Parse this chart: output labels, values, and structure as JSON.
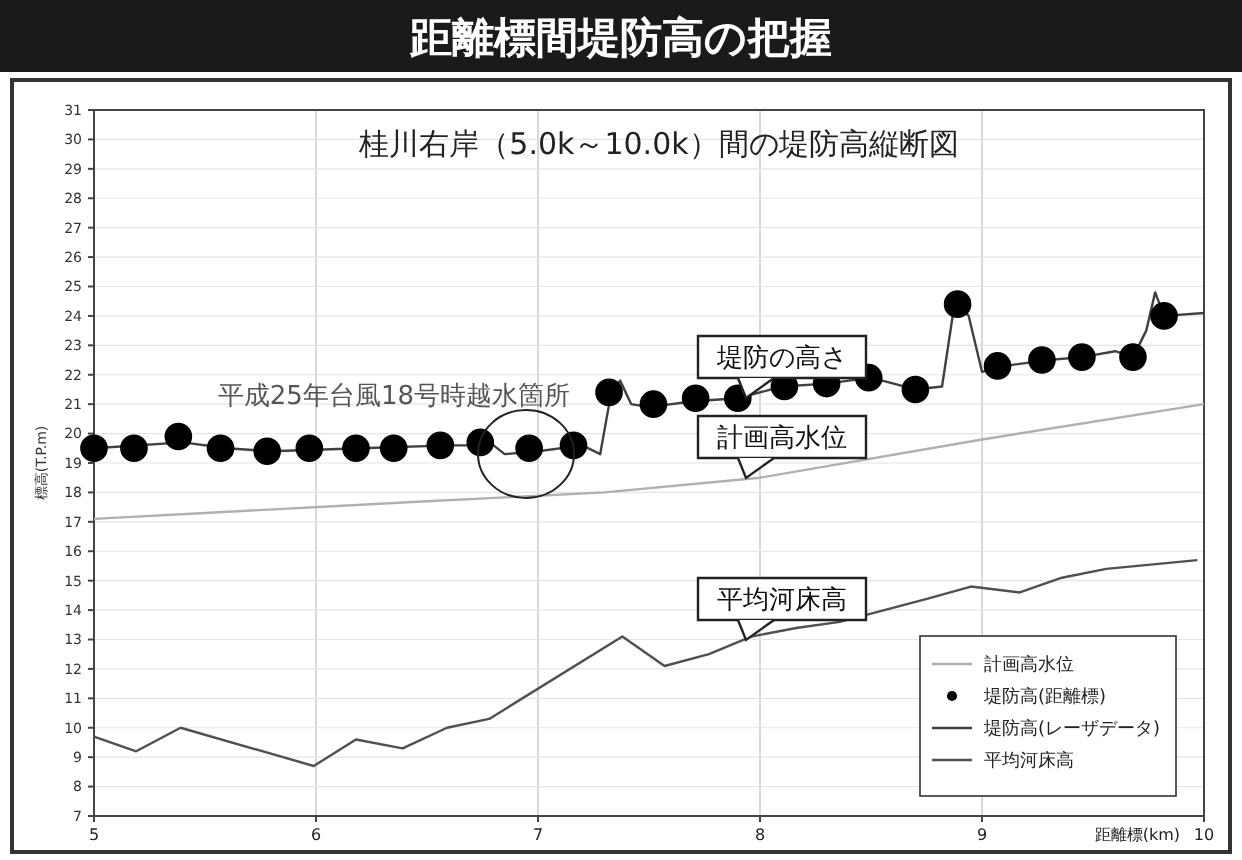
{
  "chart_data": {
    "type": "line",
    "title": "距離標間堤防高の把握",
    "subtitle": "桂川右岸（5.0k～10.0k）間の堤防高縦断図",
    "xlabel": "距離標(km)",
    "ylabel": "標高(T.P.m)",
    "xlim": [
      5,
      10
    ],
    "xticks": [
      5,
      6,
      7,
      8,
      9,
      10
    ],
    "ylim": [
      7,
      31
    ],
    "yticks": [
      7,
      8,
      9,
      10,
      11,
      12,
      13,
      14,
      15,
      16,
      17,
      18,
      19,
      20,
      21,
      22,
      23,
      24,
      25,
      26,
      27,
      28,
      29,
      30,
      31
    ],
    "grid": true,
    "legend": "bottom right",
    "series": [
      {
        "name": "計画高水位",
        "color": "#b0b0b0",
        "x": [
          5,
          5.5,
          6.5,
          7.3,
          8,
          9,
          10
        ],
        "values": [
          17.1,
          17.3,
          17.7,
          18.0,
          18.5,
          19.8,
          21.0
        ]
      },
      {
        "name": "堤防高(距離標)",
        "type": "scatter",
        "marker": "circle",
        "color": "#000000",
        "x": [
          5.0,
          5.18,
          5.38,
          5.57,
          5.78,
          5.97,
          6.18,
          6.35,
          6.56,
          6.74,
          6.96,
          7.16,
          7.32,
          7.52,
          7.71,
          7.9,
          8.11,
          8.3,
          8.49,
          8.7,
          8.89,
          9.07,
          9.27,
          9.45,
          9.68,
          9.82
        ],
        "values": [
          19.5,
          19.5,
          19.9,
          19.5,
          19.4,
          19.5,
          19.5,
          19.5,
          19.6,
          19.7,
          19.5,
          19.6,
          21.4,
          21.0,
          21.2,
          21.2,
          21.6,
          21.7,
          21.9,
          21.5,
          24.4,
          22.3,
          22.5,
          22.6,
          22.6,
          24.0
        ]
      },
      {
        "name": "堤防高(レーザデータ)",
        "color": "#404040",
        "x": [
          5.0,
          5.4,
          5.6,
          5.8,
          6.2,
          6.6,
          6.8,
          6.85,
          7.0,
          7.2,
          7.28,
          7.33,
          7.37,
          7.42,
          7.5,
          7.7,
          7.9,
          8.1,
          8.3,
          8.4,
          8.5,
          8.7,
          8.82,
          8.88,
          8.94,
          9.0,
          9.1,
          9.3,
          9.45,
          9.6,
          9.68,
          9.74,
          9.78,
          9.82,
          10.0
        ],
        "values": [
          19.5,
          19.7,
          19.5,
          19.4,
          19.5,
          19.6,
          19.6,
          19.3,
          19.4,
          19.6,
          19.3,
          21.4,
          21.8,
          21.0,
          20.9,
          21.1,
          21.2,
          21.6,
          21.7,
          21.8,
          21.9,
          21.5,
          21.6,
          24.6,
          24.0,
          22.1,
          22.3,
          22.5,
          22.6,
          22.8,
          22.6,
          23.5,
          24.8,
          24.0,
          24.1
        ]
      },
      {
        "name": "平均河床高",
        "color": "#505050",
        "x": [
          5.0,
          5.19,
          5.39,
          5.99,
          6.18,
          6.39,
          6.59,
          6.78,
          7.38,
          7.57,
          7.77,
          7.96,
          8.17,
          8.36,
          8.76,
          8.95,
          9.17,
          9.36,
          9.56,
          9.97
        ],
        "values": [
          9.7,
          9.2,
          10.0,
          8.7,
          9.6,
          9.3,
          10.0,
          10.3,
          13.1,
          12.1,
          12.5,
          13.1,
          13.4,
          13.6,
          14.4,
          14.8,
          14.6,
          15.1,
          15.4,
          15.7
        ]
      }
    ],
    "annotations": [
      "平成25年台風18号時越水箇所",
      "堤防の高さ",
      "計画高水位",
      "平均河床高"
    ]
  }
}
